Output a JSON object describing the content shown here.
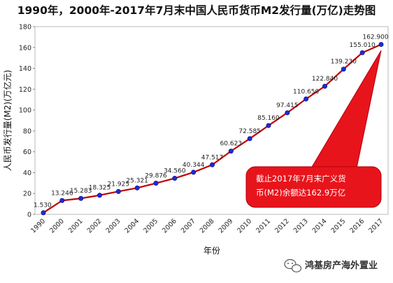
{
  "title": "1990年，2000年-2017年7月末中国人民币货币M2发行量(万亿)走势图",
  "colors": {
    "line": "#c00000",
    "marker": "#1b2bd6",
    "callout": "#e8141b",
    "border": "#b8b8b8"
  },
  "chart_data": {
    "type": "line",
    "title": "1990年，2000年-2017年7月末中国人民币货币M2发行量(万亿)走势图",
    "xlabel": "年份",
    "ylabel": "人民币发行量(M2)(万亿元)",
    "ylim": [
      0,
      180
    ],
    "yticks": [
      "0",
      "20",
      "40",
      "60",
      "80",
      "100",
      "120",
      "140",
      "160",
      "180"
    ],
    "grid": false,
    "categories": [
      "1990",
      "2000",
      "2001",
      "2002",
      "2003",
      "2004",
      "2005",
      "2006",
      "2007",
      "2008",
      "2009",
      "2010",
      "2011",
      "2012",
      "2013",
      "2014",
      "2015",
      "2016",
      "2017"
    ],
    "series": [
      {
        "values": [
          1.53,
          13.246,
          15.283,
          18.325,
          21.925,
          25.321,
          29.876,
          34.56,
          40.344,
          47.517,
          60.623,
          72.585,
          85.16,
          97.415,
          110.65,
          122.84,
          139.23,
          155.01,
          162.9
        ],
        "labels": [
          "1.530",
          "13.246",
          "15.283",
          "18.325",
          "21.925",
          "25.321",
          "29.876",
          "34.560",
          "40.344",
          "47.517",
          "60.623",
          "72.585",
          "85.160",
          "97.415",
          "110.650",
          "122.840",
          "139.230",
          "155.010",
          "162.900"
        ]
      }
    ],
    "annotation": "截止2017年7月末广义货币(M2)余额达162.9万亿"
  },
  "watermark": {
    "icon": "wechat-icon",
    "text": "鸿基房产海外置业"
  }
}
